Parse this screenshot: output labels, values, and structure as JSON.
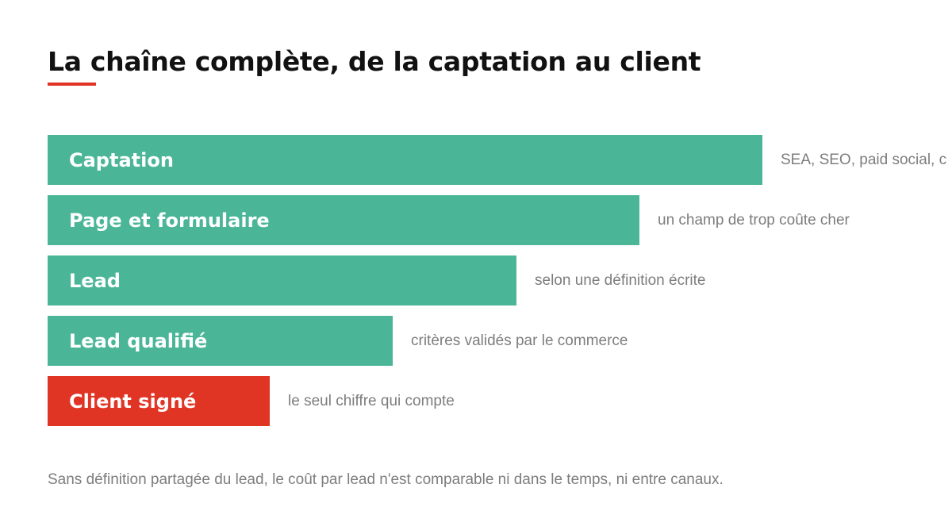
{
  "title": "La chaîne complète, de la captation au client",
  "colors": {
    "stage": "#4bb697",
    "highlight": "#e03525",
    "accent": "#e03525",
    "title": "#111111",
    "note": "#7d7d7d"
  },
  "stages": [
    {
      "label": "Captation",
      "note": "SEA, SEO, paid social, c",
      "relative_size": 0.79,
      "highlight": false
    },
    {
      "label": "Page et formulaire",
      "note": "un champ de trop coûte cher",
      "relative_size": 0.654,
      "highlight": false
    },
    {
      "label": "Lead",
      "note": "selon une définition écrite",
      "relative_size": 0.518,
      "highlight": false
    },
    {
      "label": "Lead qualifié",
      "note": "critères validés par le commerce",
      "relative_size": 0.382,
      "highlight": false
    },
    {
      "label": "Client signé",
      "note": "le seul chiffre qui compte",
      "relative_size": 0.246,
      "highlight": true
    }
  ],
  "footnote": "Sans définition partagée du lead, le coût par lead n'est comparable ni dans le temps, ni entre canaux."
}
